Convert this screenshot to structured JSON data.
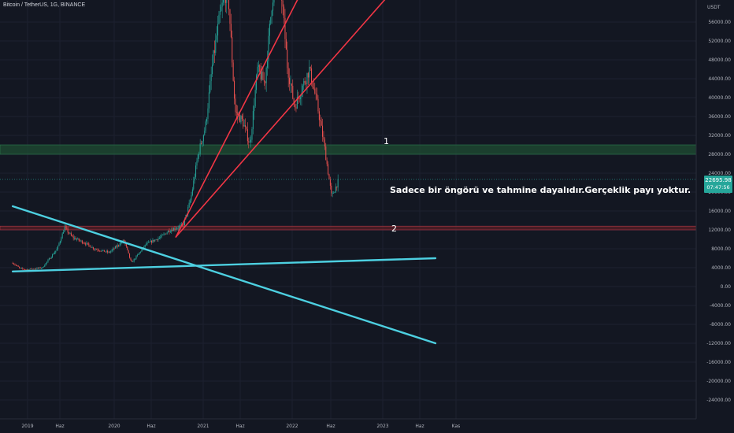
{
  "symbol_title": "Bitcoin / TetherUS, 1G, BINANCE",
  "y_axis": {
    "unit": "USDT",
    "labels": [
      "56000.00",
      "52000.00",
      "48000.00",
      "44000.00",
      "40000.00",
      "36000.00",
      "32000.00",
      "28000.00",
      "24000.00",
      "20000.00",
      "16000.00",
      "12000.00",
      "8000.00",
      "4000.00",
      "0.00",
      "-4000.00",
      "-8000.00",
      "-12000.00",
      "-16000.00",
      "-20000.00",
      "-24000.00"
    ]
  },
  "x_axis": {
    "labels": [
      "2019",
      "Haz",
      "2020",
      "Haz",
      "2021",
      "Haz",
      "2022",
      "Haz",
      "2023",
      "Haz",
      "Kas"
    ]
  },
  "current_price": {
    "price": "22695.98",
    "countdown": "07:47:56"
  },
  "annotations": {
    "label_1": "1",
    "label_2": "2",
    "note": "Sadece bir öngörü ve tahmine dayalıdır.Gerçeklik payı yoktur."
  },
  "colors": {
    "background": "#131722",
    "up_candle": "#26a69a",
    "down_candle": "#ef5350",
    "red_trendline": "#f23645",
    "cyan_trendline": "#4dd0e1",
    "green_zone": "#1f4d33",
    "red_zone": "#5a1f26"
  },
  "chart_data": {
    "type": "candlestick",
    "y_unit": "USDT",
    "ylim": [
      -26000,
      62000
    ],
    "x": [
      "2019",
      "Haz",
      "2020",
      "Haz",
      "2021",
      "Haz",
      "2022",
      "Haz",
      "2023",
      "Haz",
      "Kas"
    ],
    "approx_close_path": [
      {
        "t": "2018-11",
        "v": 5000
      },
      {
        "t": "2018-12",
        "v": 3800
      },
      {
        "t": "2019-01",
        "v": 3600
      },
      {
        "t": "2019-03",
        "v": 4000
      },
      {
        "t": "2019-05",
        "v": 8000
      },
      {
        "t": "2019-06",
        "v": 12500
      },
      {
        "t": "2019-07",
        "v": 10500
      },
      {
        "t": "2019-09",
        "v": 9000
      },
      {
        "t": "2019-10",
        "v": 8000
      },
      {
        "t": "2019-12",
        "v": 7200
      },
      {
        "t": "2020-02",
        "v": 9800
      },
      {
        "t": "2020-03",
        "v": 5000
      },
      {
        "t": "2020-05",
        "v": 9000
      },
      {
        "t": "2020-07",
        "v": 10500
      },
      {
        "t": "2020-08",
        "v": 11800
      },
      {
        "t": "2020-10",
        "v": 13000
      },
      {
        "t": "2020-11",
        "v": 18500
      },
      {
        "t": "2020-12",
        "v": 28000
      },
      {
        "t": "2021-01",
        "v": 34000
      },
      {
        "t": "2021-02",
        "v": 48000
      },
      {
        "t": "2021-03",
        "v": 58000
      },
      {
        "t": "2021-04",
        "v": 63500
      },
      {
        "t": "2021-05",
        "v": 37000
      },
      {
        "t": "2021-06",
        "v": 35000
      },
      {
        "t": "2021-07",
        "v": 30000
      },
      {
        "t": "2021-08",
        "v": 46000
      },
      {
        "t": "2021-09",
        "v": 43000
      },
      {
        "t": "2021-10",
        "v": 61000
      },
      {
        "t": "2021-11",
        "v": 67000
      },
      {
        "t": "2021-12",
        "v": 47000
      },
      {
        "t": "2022-01",
        "v": 38000
      },
      {
        "t": "2022-02",
        "v": 42000
      },
      {
        "t": "2022-03",
        "v": 46000
      },
      {
        "t": "2022-04",
        "v": 39000
      },
      {
        "t": "2022-05",
        "v": 30000
      },
      {
        "t": "2022-06",
        "v": 19000
      },
      {
        "t": "2022-07",
        "v": 22700
      }
    ],
    "zones": [
      {
        "name": "1",
        "range": [
          28000,
          30000
        ]
      },
      {
        "name": "2",
        "range": [
          12000,
          12800
        ]
      }
    ],
    "trendlines": [
      {
        "color": "red",
        "from": {
          "t": "2020-09",
          "v": 10500
        },
        "to": {
          "t": "2022-09",
          "v": 84000
        }
      },
      {
        "color": "red",
        "from": {
          "t": "2020-09",
          "v": 10500
        },
        "to": {
          "t": "2023-03",
          "v": 64000
        }
      },
      {
        "color": "cyan",
        "from": {
          "t": "2018-11",
          "v": 17000
        },
        "to": {
          "t": "2023-08",
          "v": -12000
        }
      },
      {
        "color": "cyan",
        "from": {
          "t": "2018-11",
          "v": 3200
        },
        "to": {
          "t": "2023-08",
          "v": 6000
        }
      }
    ]
  }
}
